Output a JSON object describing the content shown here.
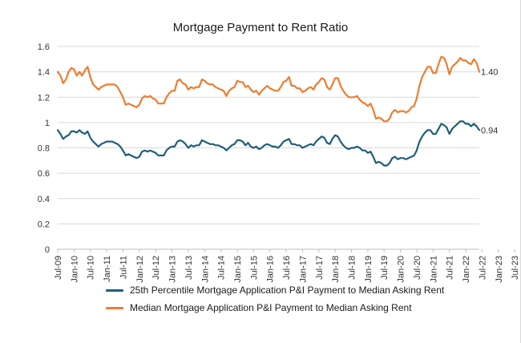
{
  "chart_data": {
    "type": "line",
    "title": "Mortgage Payment to Rent Ratio",
    "xlabel": "",
    "ylabel": "",
    "ylim": [
      0,
      1.6
    ],
    "yticks": [
      "0",
      "0.2",
      "0.4",
      "0.6",
      "0.8",
      "1",
      "1.2",
      "1.4",
      "1.6"
    ],
    "xticks": [
      "Jul-09",
      "Jan-10",
      "Jul-10",
      "Jan-11",
      "Jul-11",
      "Jan-12",
      "Jul-12",
      "Jan-13",
      "Jul-13",
      "Jan-14",
      "Jul-14",
      "Jan-15",
      "Jul-15",
      "Jan-16",
      "Jul-16",
      "Jan-17",
      "Jul-17",
      "Jan-18",
      "Jul-18",
      "Jan-19",
      "Jul-19",
      "Jan-20",
      "Jul-20",
      "Jan-21",
      "Jul-21",
      "Jan-22",
      "Jul-22",
      "Jan-23",
      "Jul-23"
    ],
    "x_start": "Jul-09",
    "grid": "horizontal",
    "legend_position": "bottom",
    "series": [
      {
        "name": "25th Percentile Mortgage Application P&I Payment to Median Asking Rent",
        "color": "#1f5f7a",
        "end_label": "0.94",
        "values": [
          0.94,
          0.91,
          0.87,
          0.89,
          0.9,
          0.93,
          0.93,
          0.92,
          0.94,
          0.92,
          0.91,
          0.93,
          0.88,
          0.85,
          0.83,
          0.81,
          0.83,
          0.84,
          0.85,
          0.85,
          0.85,
          0.84,
          0.83,
          0.81,
          0.78,
          0.74,
          0.75,
          0.74,
          0.73,
          0.72,
          0.73,
          0.77,
          0.78,
          0.77,
          0.78,
          0.77,
          0.76,
          0.74,
          0.74,
          0.74,
          0.78,
          0.8,
          0.81,
          0.81,
          0.85,
          0.86,
          0.85,
          0.83,
          0.8,
          0.82,
          0.81,
          0.82,
          0.82,
          0.86,
          0.85,
          0.84,
          0.83,
          0.83,
          0.82,
          0.82,
          0.81,
          0.8,
          0.78,
          0.8,
          0.82,
          0.83,
          0.86,
          0.86,
          0.85,
          0.82,
          0.84,
          0.81,
          0.8,
          0.81,
          0.79,
          0.8,
          0.82,
          0.83,
          0.82,
          0.81,
          0.81,
          0.8,
          0.82,
          0.85,
          0.86,
          0.87,
          0.83,
          0.83,
          0.82,
          0.82,
          0.8,
          0.81,
          0.82,
          0.83,
          0.82,
          0.85,
          0.87,
          0.89,
          0.88,
          0.84,
          0.83,
          0.87,
          0.9,
          0.89,
          0.85,
          0.82,
          0.8,
          0.79,
          0.8,
          0.8,
          0.81,
          0.8,
          0.78,
          0.78,
          0.76,
          0.77,
          0.73,
          0.68,
          0.69,
          0.68,
          0.66,
          0.66,
          0.68,
          0.72,
          0.73,
          0.71,
          0.72,
          0.72,
          0.71,
          0.72,
          0.73,
          0.74,
          0.78,
          0.85,
          0.89,
          0.92,
          0.94,
          0.94,
          0.91,
          0.91,
          0.95,
          0.99,
          0.98,
          0.96,
          0.91,
          0.95,
          0.97,
          0.99,
          1.01,
          1.01,
          0.99,
          0.99,
          0.97,
          0.99,
          0.97,
          0.94
        ]
      },
      {
        "name": "Median Mortgage Application P&I Payment to Median Asking Rent",
        "color": "#ed7d31",
        "end_label": "1.40",
        "values": [
          1.4,
          1.37,
          1.31,
          1.34,
          1.4,
          1.43,
          1.42,
          1.37,
          1.4,
          1.37,
          1.41,
          1.44,
          1.36,
          1.3,
          1.28,
          1.26,
          1.28,
          1.29,
          1.3,
          1.3,
          1.3,
          1.3,
          1.28,
          1.24,
          1.2,
          1.14,
          1.15,
          1.14,
          1.13,
          1.12,
          1.14,
          1.19,
          1.21,
          1.2,
          1.21,
          1.19,
          1.18,
          1.15,
          1.15,
          1.15,
          1.2,
          1.23,
          1.25,
          1.25,
          1.33,
          1.34,
          1.31,
          1.3,
          1.26,
          1.28,
          1.27,
          1.28,
          1.28,
          1.34,
          1.33,
          1.31,
          1.3,
          1.3,
          1.28,
          1.27,
          1.26,
          1.25,
          1.21,
          1.25,
          1.27,
          1.28,
          1.33,
          1.32,
          1.32,
          1.28,
          1.29,
          1.26,
          1.24,
          1.25,
          1.22,
          1.25,
          1.27,
          1.29,
          1.27,
          1.26,
          1.25,
          1.25,
          1.28,
          1.32,
          1.33,
          1.36,
          1.29,
          1.29,
          1.27,
          1.27,
          1.24,
          1.25,
          1.27,
          1.28,
          1.26,
          1.3,
          1.32,
          1.35,
          1.34,
          1.28,
          1.26,
          1.3,
          1.35,
          1.35,
          1.29,
          1.25,
          1.22,
          1.2,
          1.2,
          1.2,
          1.21,
          1.18,
          1.16,
          1.15,
          1.13,
          1.15,
          1.1,
          1.03,
          1.04,
          1.03,
          1.01,
          1.01,
          1.03,
          1.08,
          1.1,
          1.08,
          1.09,
          1.09,
          1.08,
          1.09,
          1.12,
          1.13,
          1.19,
          1.29,
          1.36,
          1.4,
          1.44,
          1.44,
          1.39,
          1.39,
          1.46,
          1.52,
          1.51,
          1.46,
          1.38,
          1.44,
          1.46,
          1.48,
          1.51,
          1.49,
          1.49,
          1.47,
          1.46,
          1.5,
          1.47,
          1.4
        ]
      }
    ]
  }
}
